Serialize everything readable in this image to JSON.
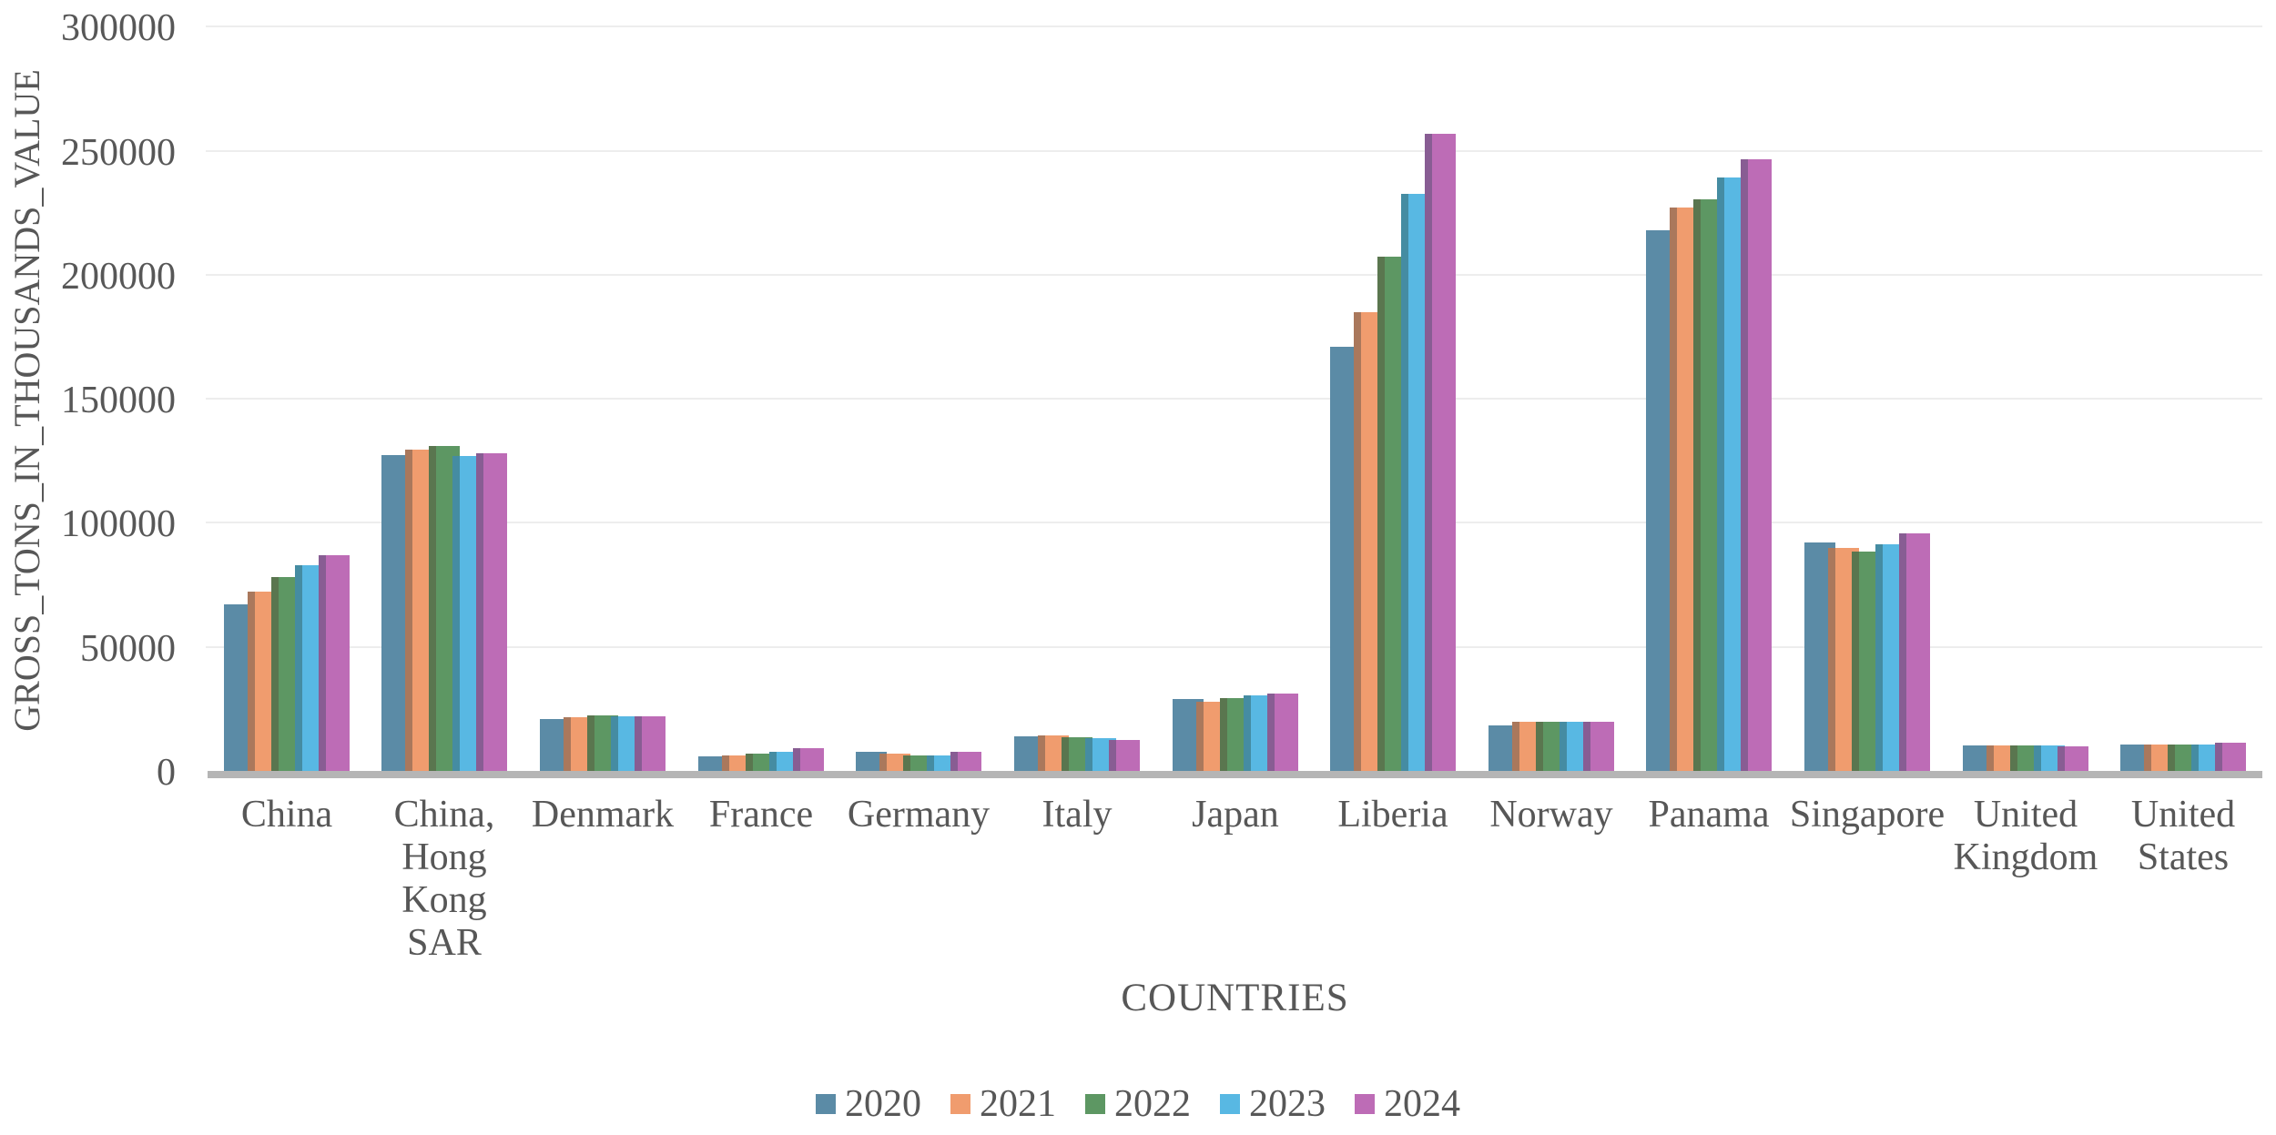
{
  "chart_data": {
    "type": "bar",
    "title": "",
    "xlabel": "COUNTRIES",
    "ylabel": "GROSS_TONS_IN_THOUSANDS_VALUE",
    "ylim": [
      0,
      300000
    ],
    "ytick_step": 50000,
    "ytick_labels": [
      "0",
      "50000",
      "100000",
      "150000",
      "200000",
      "250000",
      "300000"
    ],
    "grid": "horizontal-only",
    "legend_position": "bottom-center",
    "bar_style": "grouped-overlapping",
    "categories": [
      "China",
      "China, Hong Kong SAR",
      "Denmark",
      "France",
      "Germany",
      "Italy",
      "Japan",
      "Liberia",
      "Norway",
      "Panama",
      "Singapore",
      "United Kingdom",
      "United States"
    ],
    "category_label_lines": [
      [
        "China"
      ],
      [
        "China,",
        "Hong",
        "Kong",
        "SAR"
      ],
      [
        "Denmark"
      ],
      [
        "France"
      ],
      [
        "Germany"
      ],
      [
        "Italy"
      ],
      [
        "Japan"
      ],
      [
        "Liberia"
      ],
      [
        "Norway"
      ],
      [
        "Panama"
      ],
      [
        "Singapore"
      ],
      [
        "United",
        "Kingdom"
      ],
      [
        "United",
        "States"
      ]
    ],
    "series": [
      {
        "name": "2020",
        "color": "#5b8ba6",
        "values": [
          67000,
          127200,
          20900,
          5800,
          7600,
          14000,
          29000,
          171000,
          18500,
          218000,
          92100,
          10400,
          10600
        ]
      },
      {
        "name": "2021",
        "color": "#f09c6e",
        "values": [
          72200,
          129400,
          21700,
          6400,
          6900,
          14200,
          27800,
          184800,
          19700,
          227000,
          90000,
          10300,
          10700
        ]
      },
      {
        "name": "2022",
        "color": "#5d9763",
        "values": [
          78300,
          131000,
          22400,
          7000,
          6400,
          13600,
          29500,
          207100,
          19900,
          230500,
          88300,
          10200,
          10700
        ]
      },
      {
        "name": "2023",
        "color": "#58b8e3",
        "values": [
          83000,
          126800,
          22100,
          7800,
          6400,
          13100,
          30300,
          232400,
          19900,
          239000,
          91500,
          10100,
          10800
        ]
      },
      {
        "name": "2024",
        "color": "#bd6cb6",
        "values": [
          87000,
          128000,
          21900,
          9200,
          7600,
          12300,
          31300,
          256800,
          19900,
          246600,
          95600,
          10000,
          11200
        ]
      }
    ]
  },
  "style": {
    "text_color": "#575757",
    "gridline_color": "#ededed",
    "baseline_color": "#b5b5b5",
    "background": "#ffffff"
  },
  "layout_values": {
    "note": "static chart image; no interactive controls visible"
  }
}
